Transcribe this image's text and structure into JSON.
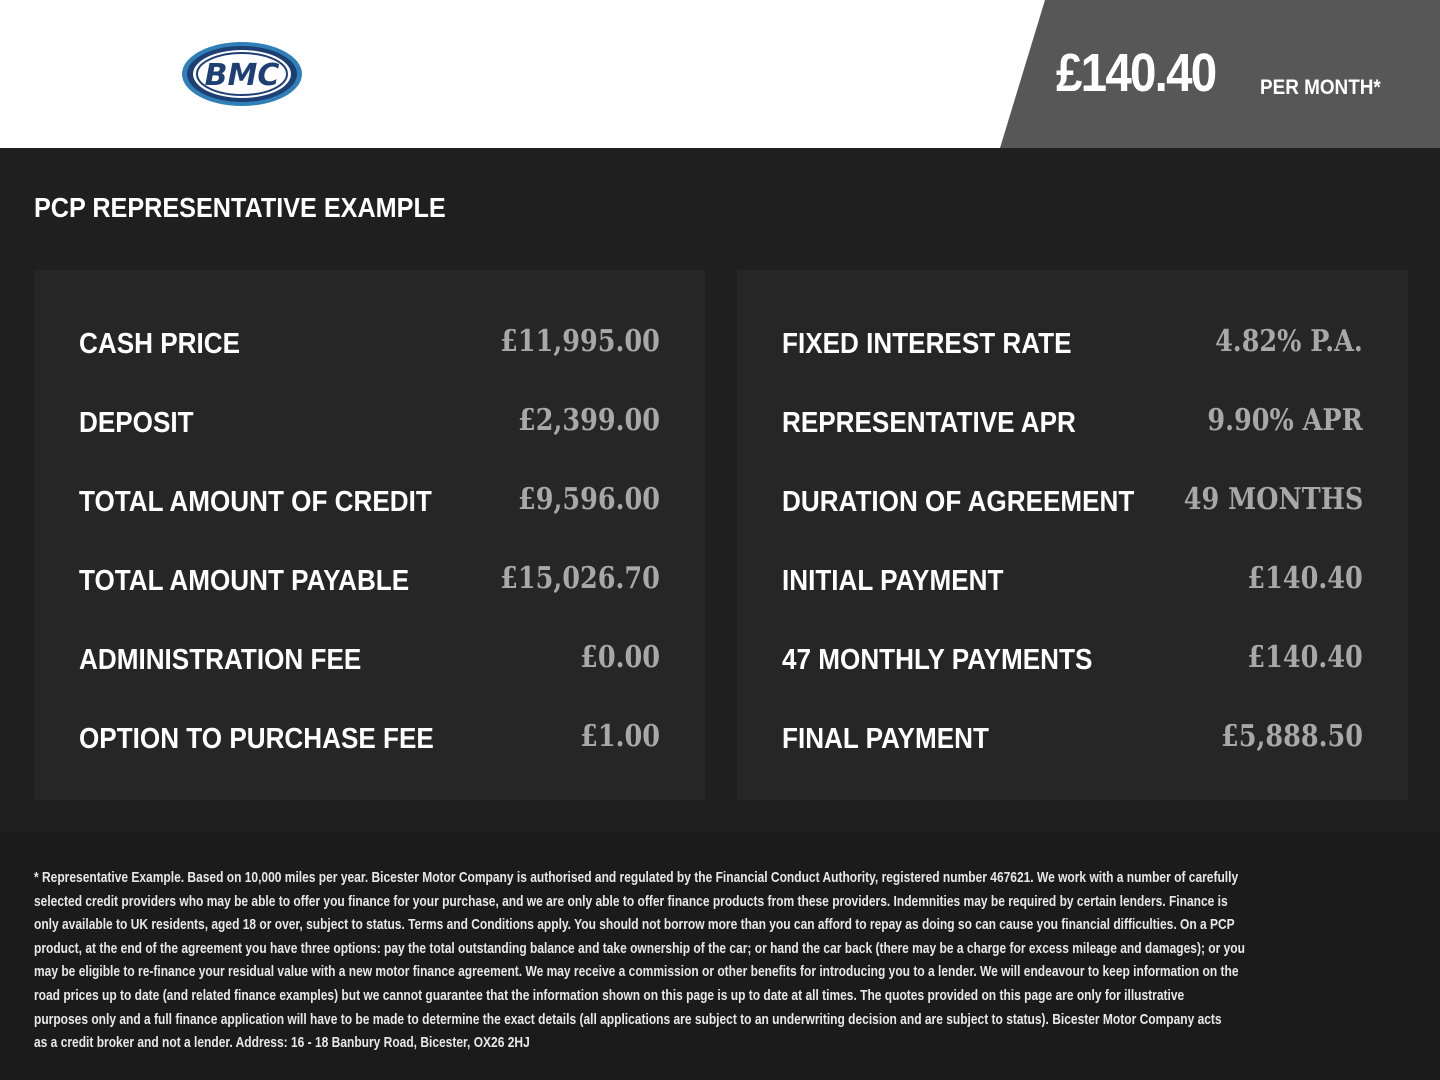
{
  "header": {
    "logo_text": "BMC",
    "price": "£140.40",
    "price_suffix": "PER MONTH*"
  },
  "title": "PCP REPRESENTATIVE EXAMPLE",
  "left_rows": [
    {
      "label": "CASH PRICE",
      "value": "£11,995.00"
    },
    {
      "label": "DEPOSIT",
      "value": "£2,399.00"
    },
    {
      "label": "TOTAL AMOUNT OF CREDIT",
      "value": "£9,596.00"
    },
    {
      "label": "TOTAL AMOUNT PAYABLE",
      "value": "£15,026.70"
    },
    {
      "label": "ADMINISTRATION FEE",
      "value": "£0.00"
    },
    {
      "label": "OPTION TO PURCHASE FEE",
      "value": "£1.00"
    }
  ],
  "right_rows": [
    {
      "label": "FIXED INTEREST RATE",
      "value": "4.82% P.A."
    },
    {
      "label": "REPRESENTATIVE APR",
      "value": "9.90% APR"
    },
    {
      "label": "DURATION OF AGREEMENT",
      "value": "49 MONTHS"
    },
    {
      "label": "INITIAL PAYMENT",
      "value": "£140.40"
    },
    {
      "label": "47 MONTHLY PAYMENTS",
      "value": "£140.40"
    },
    {
      "label": "FINAL PAYMENT",
      "value": "£5,888.50"
    }
  ],
  "footnote_lines": [
    "* Representative Example. Based on 10,000 miles per year. Bicester Motor Company is authorised and regulated by the Financial Conduct Authority, registered number 467621. We work with a number of carefully",
    "selected credit providers who may be able to offer you finance for your purchase, and we are only able to offer finance products from these providers. Indemnities may be required by certain lenders. Finance is",
    "only available to UK residents, aged 18 or over, subject to status. Terms and Conditions apply. You should not borrow more than you can afford to repay as doing so can cause you financial difficulties. On a PCP",
    "product, at the end of the agreement you have three options: pay the total outstanding balance and take ownership of the car; or hand the car back (there may be a charge for excess mileage and damages); or you",
    "may be eligible to re-finance your residual value with a new motor finance agreement. We may receive a commission or other benefits for introducing you to a lender. We will endeavour to keep information on the",
    "road prices up to date (and related finance examples) but we cannot guarantee that the information shown on this page is up to date at all times. The quotes provided on this page are only for illustrative",
    "purposes only and a full finance application will have to be made to determine the exact details (all applications are subject to an underwriting decision and are subject to status). Bicester Motor Company acts",
    "as a credit broker and not a lender. Address: 16 - 18 Banbury Road, Bicester, OX26 2HJ"
  ],
  "colors": {
    "logo_blue": "#1d3f73",
    "logo_light": "#2f80b8",
    "band": "#575757",
    "bg": "#1f1f1f",
    "panel": "#262626"
  }
}
